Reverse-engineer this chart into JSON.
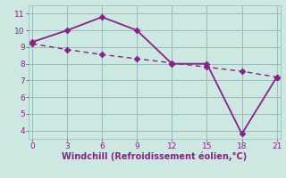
{
  "line1_x": [
    0,
    3,
    6,
    9,
    12,
    15,
    18,
    21
  ],
  "line1_y": [
    9.3,
    10.0,
    10.8,
    10.0,
    8.0,
    8.0,
    3.8,
    7.2
  ],
  "line2_x": [
    0,
    3,
    6,
    9,
    12,
    15,
    18,
    21
  ],
  "line2_y": [
    9.2,
    8.85,
    8.55,
    8.3,
    8.05,
    7.8,
    7.55,
    7.2
  ],
  "line_color": "#882288",
  "bg_color": "#cce8e0",
  "grid_color": "#99bbbb",
  "xlabel": "Windchill (Refroidissement éolien,°C)",
  "xlabel_color": "#882288",
  "xticks": [
    0,
    3,
    6,
    9,
    12,
    15,
    18,
    21
  ],
  "yticks": [
    4,
    5,
    6,
    7,
    8,
    9,
    10,
    11
  ],
  "xlim": [
    -0.3,
    21.3
  ],
  "ylim": [
    3.5,
    11.5
  ],
  "tick_color": "#882288",
  "markersize": 3.5,
  "linewidth1": 1.3,
  "linewidth2": 1.0
}
